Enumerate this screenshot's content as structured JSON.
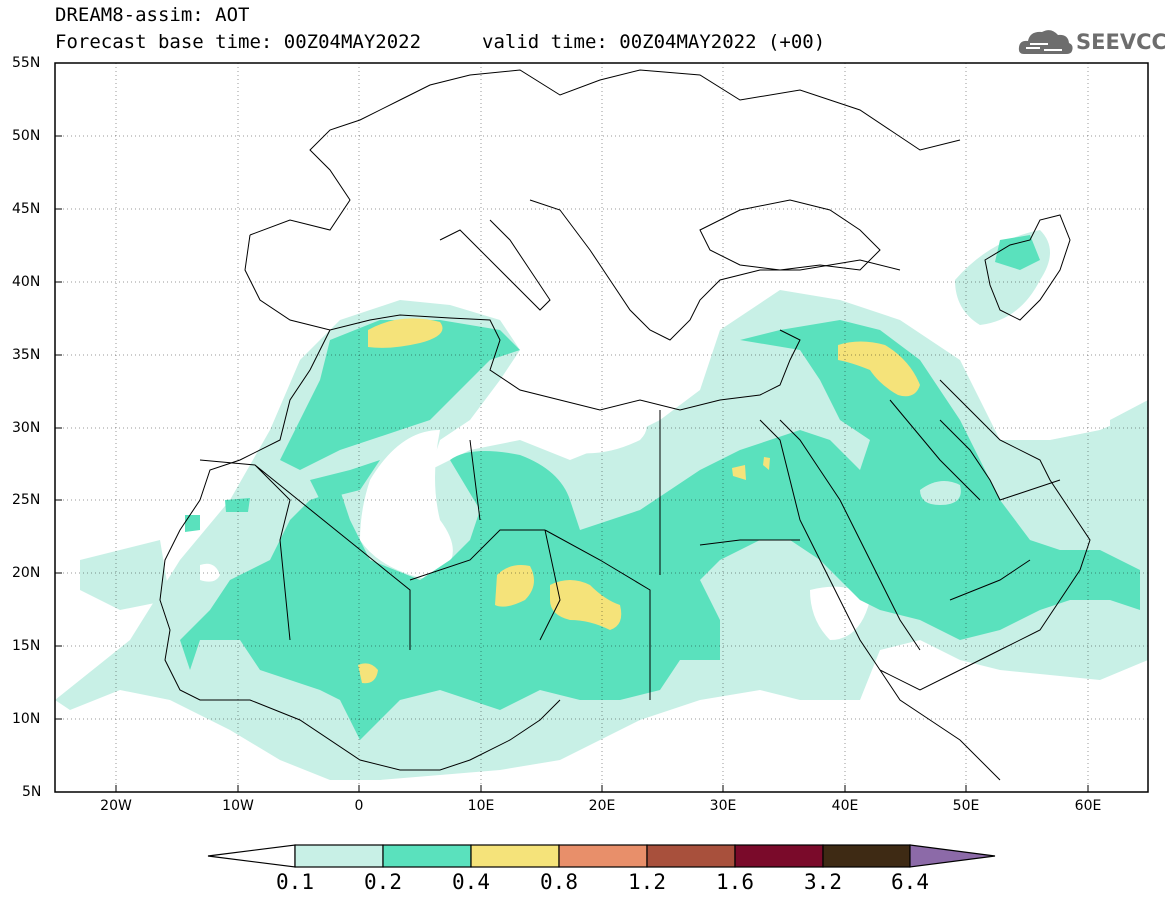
{
  "header": {
    "title": "DREAM8-assim: AOT",
    "base_time": "Forecast base time: 00Z04MAY2022",
    "valid_time": "valid time: 00Z04MAY2022 (+00)"
  },
  "logo": {
    "text": "SEEVCCC",
    "icon": "cloud-icon"
  },
  "map": {
    "lat_ticks": [
      "55N",
      "50N",
      "45N",
      "40N",
      "35N",
      "30N",
      "25N",
      "20N",
      "15N",
      "10N",
      "5N"
    ],
    "lon_ticks": [
      "20W",
      "10W",
      "0",
      "10E",
      "20E",
      "30E",
      "40E",
      "50E",
      "60E"
    ],
    "extent": {
      "lon": [
        -25,
        65
      ],
      "lat": [
        5,
        55
      ]
    }
  },
  "colorbar": {
    "labels": [
      "0.1",
      "0.2",
      "0.4",
      "0.8",
      "1.2",
      "1.6",
      "3.2",
      "6.4"
    ],
    "colors": [
      "#ffffff",
      "#c8f0e6",
      "#5ae1bd",
      "#f5e37a",
      "#e88f6a",
      "#a8503c",
      "#7a0a2a",
      "#3e2a14",
      "#8c6aa8"
    ]
  }
}
